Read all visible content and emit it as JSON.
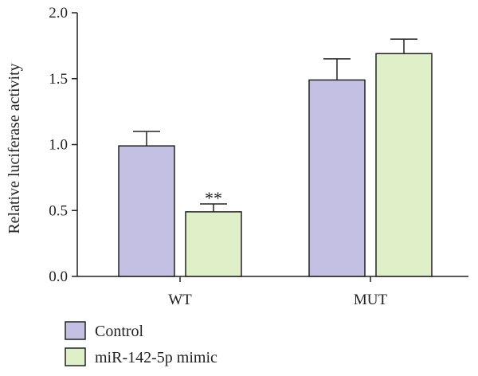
{
  "chart_data": {
    "type": "bar",
    "ylabel": "Relative luciferase activity",
    "xlabel": "",
    "ylim": [
      0,
      2.0
    ],
    "yticks": [
      0.0,
      0.5,
      1.0,
      1.5,
      2.0
    ],
    "ytick_labels": [
      "0.0",
      "0.5",
      "1.0",
      "1.5",
      "2.0"
    ],
    "categories": [
      "WT",
      "MUT"
    ],
    "series": [
      {
        "name": "Control",
        "color": "#c4c0e4",
        "values": [
          0.99,
          1.49
        ],
        "errors": [
          0.11,
          0.16
        ]
      },
      {
        "name": "miR-142-5p mimic",
        "color": "#dff0c8",
        "values": [
          0.49,
          1.69
        ],
        "errors": [
          0.06,
          0.11
        ]
      }
    ],
    "annotations": [
      {
        "category": "WT",
        "series": "miR-142-5p mimic",
        "text": "**"
      }
    ],
    "legend_position": "bottom-left",
    "grid": false
  }
}
